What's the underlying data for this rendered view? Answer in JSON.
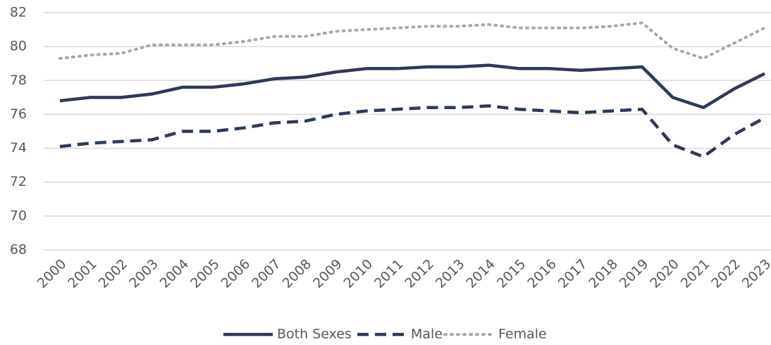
{
  "chart_data": {
    "type": "line",
    "categories": [
      "2000",
      "2001",
      "2002",
      "2003",
      "2004",
      "2005",
      "2006",
      "2007",
      "2008",
      "2009",
      "2010",
      "2011",
      "2012",
      "2013",
      "2014",
      "2015",
      "2016",
      "2017",
      "2018",
      "2019",
      "2020",
      "2021",
      "2022",
      "2023"
    ],
    "series": [
      {
        "name": "Both Sexes",
        "color": "#2e3a59",
        "style": "solid",
        "values": [
          76.8,
          77.0,
          77.0,
          77.2,
          77.6,
          77.6,
          77.8,
          78.1,
          78.2,
          78.5,
          78.7,
          78.7,
          78.8,
          78.8,
          78.9,
          78.7,
          78.7,
          78.6,
          78.7,
          78.8,
          77.0,
          76.4,
          77.5,
          78.4
        ]
      },
      {
        "name": "Male",
        "color": "#2e3a59",
        "style": "dashed",
        "values": [
          74.1,
          74.3,
          74.4,
          74.5,
          75.0,
          75.0,
          75.2,
          75.5,
          75.6,
          76.0,
          76.2,
          76.3,
          76.4,
          76.4,
          76.5,
          76.3,
          76.2,
          76.1,
          76.2,
          76.3,
          74.2,
          73.5,
          74.8,
          75.8
        ]
      },
      {
        "name": "Female",
        "color": "#a6a8b3",
        "style": "dotted",
        "values": [
          79.3,
          79.5,
          79.6,
          80.1,
          80.1,
          80.1,
          80.3,
          80.6,
          80.6,
          80.9,
          81.0,
          81.1,
          81.2,
          81.2,
          81.3,
          81.1,
          81.1,
          81.1,
          81.2,
          81.4,
          79.9,
          79.3,
          80.2,
          81.1
        ]
      }
    ],
    "ylim": [
      68,
      82
    ],
    "yticks": [
      68,
      70,
      72,
      74,
      76,
      78,
      80,
      82
    ],
    "grid": true,
    "legend": "bottom"
  }
}
